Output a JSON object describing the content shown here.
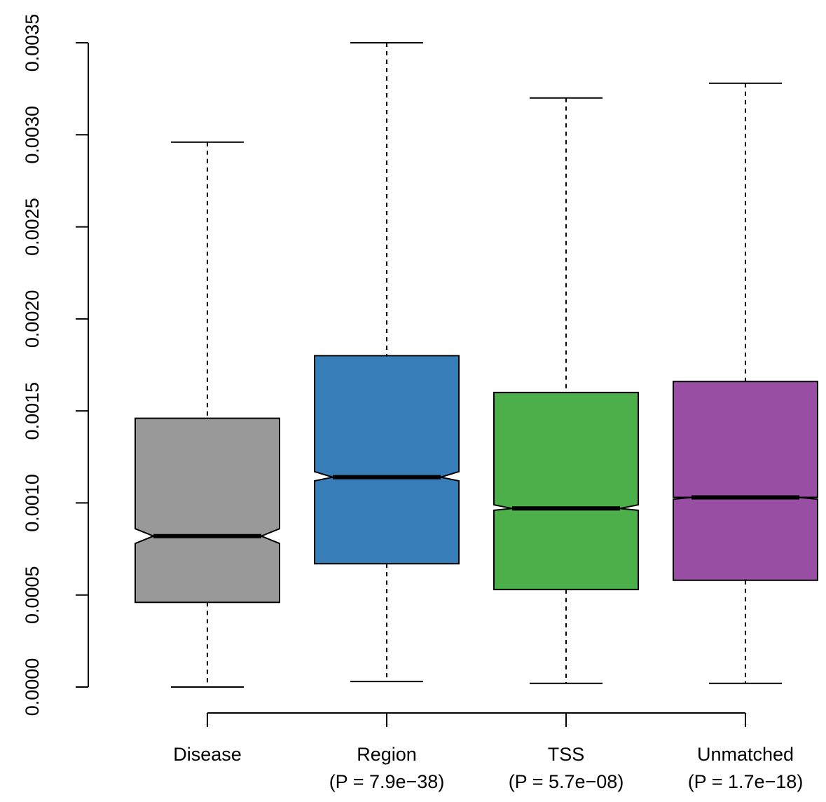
{
  "chart_data": {
    "type": "boxplot",
    "title": "",
    "xlabel": "",
    "ylabel": "",
    "ylim": [
      0,
      0.0035
    ],
    "yticks": [
      "0.0000",
      "0.0005",
      "0.0010",
      "0.0015",
      "0.0020",
      "0.0025",
      "0.0030",
      "0.0035"
    ],
    "notched": true,
    "categories": [
      {
        "name": "Disease",
        "pvalue": "",
        "color": "#999999",
        "whisker_low": 0.0,
        "q1": 0.00046,
        "median": 0.00082,
        "q3": 0.00146,
        "whisker_high": 0.00296,
        "notch_low": 0.00078,
        "notch_high": 0.00086
      },
      {
        "name": "Region",
        "pvalue": "(P = 7.9e−38)",
        "color": "#377EB8",
        "whisker_low": 3e-05,
        "q1": 0.00067,
        "median": 0.00114,
        "q3": 0.0018,
        "whisker_high": 0.0035,
        "notch_low": 0.00112,
        "notch_high": 0.00117
      },
      {
        "name": "TSS",
        "pvalue": "(P = 5.7e−08)",
        "color": "#4DAF4A",
        "whisker_low": 2e-05,
        "q1": 0.00053,
        "median": 0.00097,
        "q3": 0.0016,
        "whisker_high": 0.0032,
        "notch_low": 0.00096,
        "notch_high": 0.00099
      },
      {
        "name": "Unmatched",
        "pvalue": "(P = 1.7e−18)",
        "color": "#984EA3",
        "whisker_low": 2e-05,
        "q1": 0.00058,
        "median": 0.00103,
        "q3": 0.00166,
        "whisker_high": 0.00328,
        "notch_low": 0.00102,
        "notch_high": 0.00103
      }
    ]
  }
}
